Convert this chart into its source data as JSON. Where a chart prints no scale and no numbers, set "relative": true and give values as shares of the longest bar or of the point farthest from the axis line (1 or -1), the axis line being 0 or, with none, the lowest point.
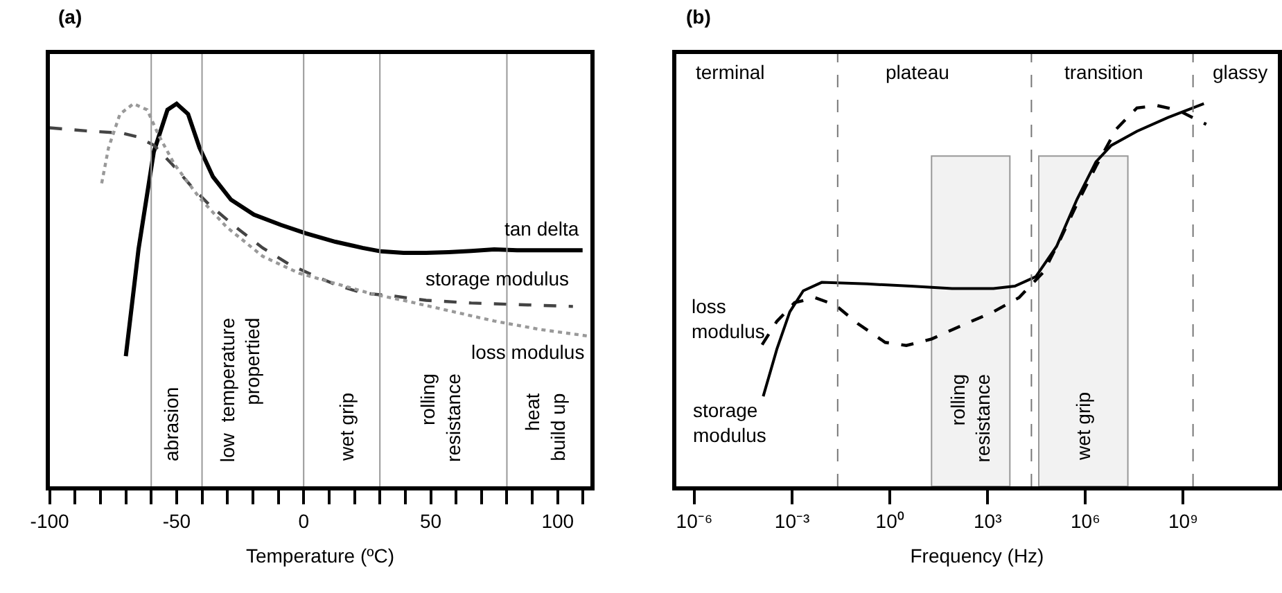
{
  "chart_data": [
    {
      "type": "line",
      "title": "(a)",
      "xlabel": "Temperature (ºC)",
      "relative": true,
      "tick_labels": "x",
      "grid": false,
      "xlim": [
        -100,
        113
      ],
      "xticks": [
        -100,
        {
          "value": -90,
          "label": null
        },
        {
          "value": -80,
          "label": null
        },
        {
          "value": -70,
          "label": null
        },
        {
          "value": -60,
          "label": null
        },
        -50,
        {
          "value": -40,
          "label": null
        },
        {
          "value": -30,
          "label": null
        },
        {
          "value": -20,
          "label": null
        },
        {
          "value": -10,
          "label": null
        },
        0,
        {
          "value": 10,
          "label": null
        },
        {
          "value": 20,
          "label": null
        },
        {
          "value": 30,
          "label": null
        },
        {
          "value": 40,
          "label": null
        },
        50,
        {
          "value": 60,
          "label": null
        },
        {
          "value": 70,
          "label": null
        },
        {
          "value": 80,
          "label": null
        },
        {
          "value": 90,
          "label": null
        },
        100,
        {
          "value": 110,
          "label": null
        }
      ],
      "series": [
        {
          "name": "tan delta",
          "color": "#000000",
          "line_style": "solid",
          "x": [
            -70,
            -65,
            -59,
            -53.6,
            -50,
            -45.5,
            -41,
            -35.7,
            -28.6,
            -19.6,
            -8.9,
            0.9,
            12.5,
            23.2,
            30.4,
            39.3,
            48.2,
            57.1,
            66,
            75,
            84,
            109.8
          ],
          "values": [
            0.34,
            0.62,
            0.874,
            0.984,
            1.0,
            0.973,
            0.885,
            0.809,
            0.749,
            0.71,
            0.683,
            0.661,
            0.639,
            0.623,
            0.614,
            0.61,
            0.61,
            0.612,
            0.615,
            0.619,
            0.617,
            0.617
          ]
        },
        {
          "name": "storage modulus",
          "color": "#444444",
          "line_style": "dashed",
          "x": [
            -100,
            -85.7,
            -71.4,
            -65.2,
            -58.9,
            -51.8,
            -44.6,
            -37.5,
            -26.8,
            -16.1,
            -5.4,
            3.6,
            12.5,
            23.2,
            35.7,
            48.2,
            66,
            84,
            106
          ],
          "values": [
            0.937,
            0.929,
            0.923,
            0.913,
            0.891,
            0.842,
            0.787,
            0.738,
            0.678,
            0.623,
            0.579,
            0.552,
            0.527,
            0.505,
            0.497,
            0.486,
            0.479,
            0.475,
            0.47
          ]
        },
        {
          "name": "loss modulus",
          "color": "#999999",
          "line_style": "dotted",
          "x": [
            -79.5,
            -76.8,
            -72.3,
            -67,
            -61.6,
            -57.1,
            -50.9,
            -41,
            -30.4,
            -16.1,
            -1.8,
            12.5,
            26.8,
            39.3,
            57.1,
            75,
            92.9,
            111.6
          ],
          "values": [
            0.792,
            0.885,
            0.973,
            1.0,
            0.984,
            0.918,
            0.842,
            0.754,
            0.678,
            0.601,
            0.557,
            0.53,
            0.503,
            0.486,
            0.459,
            0.432,
            0.41,
            0.393
          ]
        }
      ],
      "ref_lines": [
        {
          "axis": "x",
          "value": -60,
          "color": "#999999",
          "line_style": "solid"
        },
        {
          "axis": "x",
          "value": -40,
          "color": "#999999",
          "line_style": "solid"
        },
        {
          "axis": "x",
          "value": 0,
          "color": "#999999",
          "line_style": "solid"
        },
        {
          "axis": "x",
          "value": 30,
          "color": "#999999",
          "line_style": "solid"
        },
        {
          "axis": "x",
          "value": 80,
          "color": "#999999",
          "line_style": "solid"
        }
      ],
      "annotations": [
        "abrasion",
        "low  temperature\npropertied",
        "wet grip",
        "rolling\nresistance",
        "heat\nbuild up"
      ]
    },
    {
      "type": "line",
      "title": "(b)",
      "xlabel": "Frequency (Hz)",
      "relative": true,
      "tick_labels": "x",
      "grid": false,
      "log": "x",
      "xlim": [
        2.8e-07,
        800000000000.0
      ],
      "xticks": [
        {
          "value": 1e-06,
          "label": "10⁻⁶"
        },
        {
          "value": 0.001,
          "label": "10⁻³"
        },
        {
          "value": 1,
          "label": "10⁰"
        },
        {
          "value": 1000.0,
          "label": "10³"
        },
        {
          "value": 1000000.0,
          "label": "10⁶"
        },
        {
          "value": 1000000000.0,
          "label": "10⁹"
        }
      ],
      "series": [
        {
          "name": "storage modulus",
          "color": "#000000",
          "line_style": "solid",
          "x": [
            0.00013,
            0.00034,
            0.00085,
            0.0022,
            0.0081,
            0.2,
            4.4,
            81,
            1500.0,
            6800.0,
            30000.0,
            130000.0,
            550000.0,
            2100000.0,
            6200000.0,
            38000000.0,
            340000000.0,
            4300000000.0
          ],
          "values": [
            0.235,
            0.358,
            0.456,
            0.511,
            0.533,
            0.529,
            0.523,
            0.517,
            0.517,
            0.523,
            0.548,
            0.627,
            0.75,
            0.848,
            0.891,
            0.928,
            0.964,
            1.0
          ]
        },
        {
          "name": "loss modulus",
          "color": "#000000",
          "line_style": "dashed",
          "x": [
            0.00012,
            0.00034,
            0.0012,
            0.005,
            0.021,
            0.105,
            0.72,
            3.2,
            19,
            150,
            1500.0,
            9100.0,
            52000.0,
            170000.0,
            550000.0,
            2100000.0,
            8900000.0,
            38000000.0,
            160000000.0,
            690000000.0,
            5100000000.0
          ],
          "values": [
            0.37,
            0.431,
            0.48,
            0.493,
            0.474,
            0.425,
            0.376,
            0.368,
            0.385,
            0.419,
            0.456,
            0.493,
            0.56,
            0.646,
            0.738,
            0.836,
            0.934,
            0.989,
            0.995,
            0.983,
            0.946
          ]
        }
      ],
      "ref_lines": [
        {
          "axis": "x",
          "value": 0.025,
          "color": "#777777",
          "line_style": "dashed"
        },
        {
          "axis": "x",
          "value": 22000.0,
          "color": "#777777",
          "line_style": "dashed"
        },
        {
          "axis": "x",
          "value": 2000000000.0,
          "color": "#777777",
          "line_style": "dashed"
        }
      ],
      "annotations": [
        "terminal",
        "plateau",
        "transition",
        "glassy"
      ],
      "bands": [
        {
          "axis": "x",
          "from": 19,
          "to": 4800.0,
          "label": "rolling\nresistance",
          "color": "#999999"
        },
        {
          "axis": "x",
          "from": 37000.0,
          "to": 20000000.0,
          "label": "wet grip",
          "color": "#999999"
        }
      ]
    }
  ]
}
